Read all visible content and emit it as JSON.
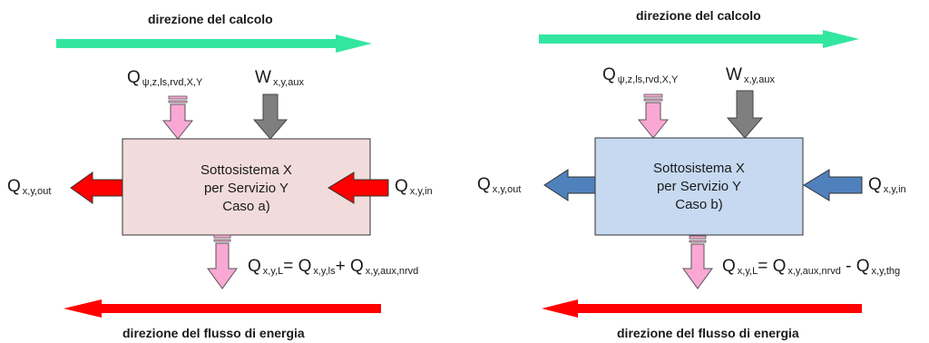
{
  "panels": [
    {
      "id": "a",
      "direction_calc": "direzione del calcolo",
      "direction_flow": "direzione del flusso di energia",
      "input_top": {
        "symbol": "Q",
        "subscript": "ψ,z,ls,rvd,X,Y"
      },
      "aux_top": {
        "symbol": "W",
        "subscript": "x,y,aux"
      },
      "box_lines": [
        "Sottosistema  X",
        "per Servizio Y",
        "Caso a)"
      ],
      "out_left": {
        "symbol": "Q",
        "subscript": "x,y,out"
      },
      "in_right": {
        "symbol": "Q",
        "subscript": "x,y,in"
      },
      "loss": {
        "symbol": "Q",
        "subscript": "x,y,L",
        "term1_symbol": "Q",
        "term1_sub": "x,y,ls",
        "operator": "+",
        "term2_symbol": "Q",
        "term2_sub": "x,y,aux,nrvd"
      },
      "colors": {
        "box_fill": "#f2dcdb",
        "side_arrows": "#ff0000"
      }
    },
    {
      "id": "b",
      "direction_calc": "direzione del calcolo",
      "direction_flow": "direzione del flusso di energia",
      "input_top": {
        "symbol": "Q",
        "subscript": "ψ,z,ls,rvd,X,Y"
      },
      "aux_top": {
        "symbol": "W",
        "subscript": "x,y,aux"
      },
      "box_lines": [
        "Sottosistema  X",
        "per Servizio Y",
        "Caso b)"
      ],
      "out_left": {
        "symbol": "Q",
        "subscript": "x,y,out"
      },
      "in_right": {
        "symbol": "Q",
        "subscript": "x,y,in"
      },
      "loss": {
        "symbol": "Q",
        "subscript": "x,y,L",
        "term1_symbol": "Q",
        "term1_sub": "x,y,aux,nrvd",
        "operator": "-",
        "term2_symbol": "Q",
        "term2_sub": "x,y,thg"
      },
      "colors": {
        "box_fill": "#c6d9f1",
        "side_arrows": "#4f81bd"
      }
    }
  ],
  "colors": {
    "calc_arrow": "#33e6a0",
    "flow_arrow": "#ff0000",
    "pink_arrow": "#f9a8d4",
    "gray_arrow": "#7f7f7f",
    "box_border": "#333333"
  }
}
